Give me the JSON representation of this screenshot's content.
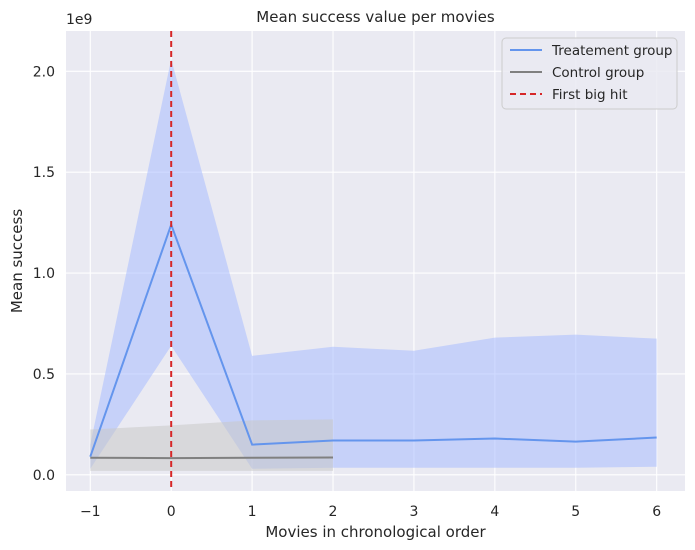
{
  "chart_data": {
    "type": "line",
    "title": "Mean success value per movies",
    "xlabel": "Movies in chronological order",
    "ylabel": "Mean success",
    "y_offset_text": "1e9",
    "xlim": [
      -1.3,
      6.35
    ],
    "ylim": [
      -0.08,
      2.2
    ],
    "x_ticks": [
      -1,
      0,
      1,
      2,
      3,
      4,
      5,
      6
    ],
    "x_tick_labels": [
      "−1",
      "0",
      "1",
      "2",
      "3",
      "4",
      "5",
      "6"
    ],
    "y_ticks": [
      0.0,
      0.5,
      1.0,
      1.5,
      2.0
    ],
    "y_tick_labels": [
      "0.0",
      "0.5",
      "1.0",
      "1.5",
      "2.0"
    ],
    "grid": true,
    "legend_position": "top-right",
    "series": [
      {
        "name": "Treatement group",
        "color": "#6495ED",
        "band_color": "#a8bcff",
        "x": [
          -1,
          0,
          1,
          2,
          3,
          4,
          5,
          6
        ],
        "values": [
          0.09,
          1.24,
          0.15,
          0.17,
          0.17,
          0.18,
          0.165,
          0.185
        ],
        "lower": [
          0.03,
          0.64,
          0.03,
          0.035,
          0.035,
          0.035,
          0.035,
          0.04
        ],
        "upper": [
          0.15,
          2.06,
          0.59,
          0.635,
          0.615,
          0.68,
          0.695,
          0.675
        ]
      },
      {
        "name": "Control group",
        "color": "#808080",
        "band_color": "#c8c8c8",
        "x": [
          -1,
          0,
          1,
          2
        ],
        "values": [
          0.085,
          0.083,
          0.085,
          0.086
        ],
        "lower": [
          0.02,
          0.02,
          0.02,
          0.02
        ],
        "upper": [
          0.225,
          0.245,
          0.27,
          0.275
        ]
      }
    ],
    "vline": {
      "name": "First big hit",
      "x": 0,
      "color": "#d62728"
    }
  }
}
